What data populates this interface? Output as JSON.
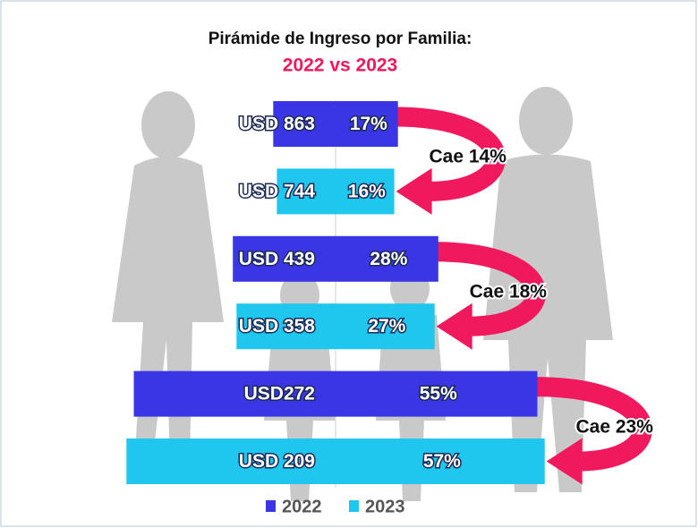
{
  "chart_data": {
    "type": "pyramid",
    "title": "Pirámide de Ingreso por Familia:",
    "subtitle": "2022 vs 2023",
    "series": [
      {
        "name": "2022",
        "color": "#3a36e6",
        "categories": [
          "USD 863",
          "USD 439",
          "USD272"
        ],
        "values": [
          17,
          28,
          55
        ],
        "value_labels": [
          "17%",
          "28%",
          "55%"
        ]
      },
      {
        "name": "2023",
        "color": "#1fc6ee",
        "categories": [
          "USD 744",
          "USD 358",
          "USD 209"
        ],
        "values": [
          16,
          27,
          57
        ],
        "value_labels": [
          "16%",
          "27%",
          "57%"
        ]
      }
    ],
    "annotations": [
      "Cae 14%",
      "Cae 18%",
      "Cae 23%"
    ],
    "arrow_color": "#f0195e"
  }
}
